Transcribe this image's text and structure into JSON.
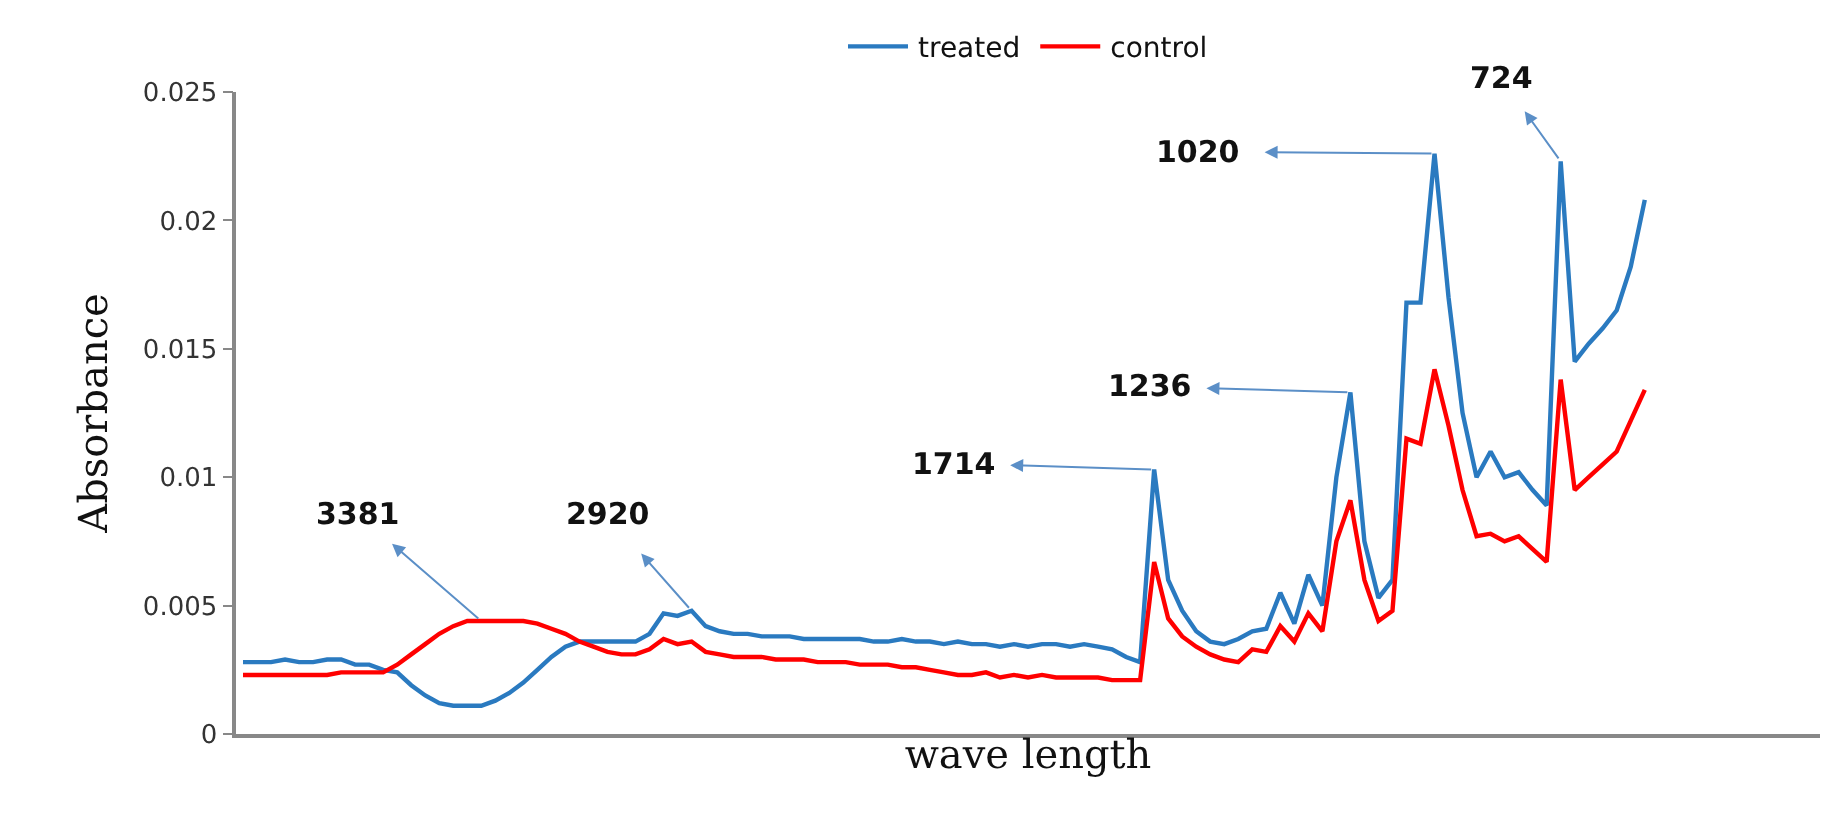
{
  "chart_data": {
    "type": "line",
    "xlabel": "wave length",
    "ylabel": "Absorbance",
    "categories": [
      null,
      null,
      null,
      null,
      null,
      null,
      null,
      null,
      null,
      null,
      null,
      null,
      null,
      null,
      null,
      null,
      null,
      null,
      null,
      null,
      null,
      null,
      null,
      null,
      null,
      null,
      null,
      null,
      null,
      null,
      null,
      null,
      null,
      null,
      null,
      null,
      null,
      null,
      null,
      null,
      null,
      null,
      null,
      null,
      null,
      null,
      null,
      null,
      null,
      null,
      null,
      null,
      null,
      null,
      null,
      null,
      null,
      null,
      null,
      null,
      null,
      null,
      null,
      null,
      null,
      null,
      null,
      null,
      null,
      null,
      null,
      null,
      null,
      null,
      null,
      null,
      null,
      null,
      null,
      null,
      null,
      null,
      null,
      null,
      null,
      null,
      null,
      null,
      null,
      null,
      null,
      null,
      null,
      null,
      null,
      null,
      null,
      null,
      null,
      null,
      null,
      null,
      null,
      null,
      null,
      null,
      null,
      null,
      null,
      null,
      null,
      null,
      null
    ],
    "series": [
      {
        "name": "treated",
        "color": "#2a7ac0",
        "values": [
          0.0028,
          0.0028,
          0.0028,
          0.0029,
          0.0028,
          0.0028,
          0.0029,
          0.0029,
          0.0027,
          0.0027,
          0.0025,
          0.0024,
          0.0019,
          0.0015,
          0.0012,
          0.0011,
          0.0011,
          0.0011,
          0.0013,
          0.0016,
          0.002,
          0.0025,
          0.003,
          0.0034,
          0.0036,
          0.0036,
          0.0036,
          0.0036,
          0.0036,
          0.0039,
          0.0047,
          0.0046,
          0.0048,
          0.0042,
          0.004,
          0.0039,
          0.0039,
          0.0038,
          0.0038,
          0.0038,
          0.0037,
          0.0037,
          0.0037,
          0.0037,
          0.0037,
          0.0036,
          0.0036,
          0.0037,
          0.0036,
          0.0036,
          0.0035,
          0.0036,
          0.0035,
          0.0035,
          0.0034,
          0.0035,
          0.0034,
          0.0035,
          0.0035,
          0.0034,
          0.0035,
          0.0034,
          0.0033,
          0.003,
          0.0028,
          0.0103,
          0.006,
          0.0048,
          0.004,
          0.0036,
          0.0035,
          0.0037,
          0.004,
          0.0041,
          0.0055,
          0.0043,
          0.0062,
          0.005,
          0.01,
          0.0133,
          0.0075,
          0.0053,
          0.006,
          0.0168,
          0.0168,
          0.0226,
          0.017,
          0.0125,
          0.01,
          0.011,
          0.01,
          0.0102,
          0.0095,
          0.0089,
          0.0223,
          0.0145,
          0.0152,
          0.0158,
          0.0165,
          0.0182,
          0.0208,
          null,
          null,
          null,
          null,
          null,
          null,
          null,
          null,
          null,
          null,
          null,
          null
        ]
      },
      {
        "name": "control",
        "color": "#ff0000",
        "values": [
          0.0023,
          0.0023,
          0.0023,
          0.0023,
          0.0023,
          0.0023,
          0.0023,
          0.0024,
          0.0024,
          0.0024,
          0.0024,
          0.0027,
          0.0031,
          0.0035,
          0.0039,
          0.0042,
          0.0044,
          0.0044,
          0.0044,
          0.0044,
          0.0044,
          0.0043,
          0.0041,
          0.0039,
          0.0036,
          0.0034,
          0.0032,
          0.0031,
          0.0031,
          0.0033,
          0.0037,
          0.0035,
          0.0036,
          0.0032,
          0.0031,
          0.003,
          0.003,
          0.003,
          0.0029,
          0.0029,
          0.0029,
          0.0028,
          0.0028,
          0.0028,
          0.0027,
          0.0027,
          0.0027,
          0.0026,
          0.0026,
          0.0025,
          0.0024,
          0.0023,
          0.0023,
          0.0024,
          0.0022,
          0.0023,
          0.0022,
          0.0023,
          0.0022,
          0.0022,
          0.0022,
          0.0022,
          0.0021,
          0.0021,
          0.0021,
          0.0067,
          0.0045,
          0.0038,
          0.0034,
          0.0031,
          0.0029,
          0.0028,
          0.0033,
          0.0032,
          0.0042,
          0.0036,
          0.0047,
          0.004,
          0.0075,
          0.0091,
          0.006,
          0.0044,
          0.0048,
          0.0115,
          0.0113,
          0.0142,
          0.012,
          0.0095,
          0.0077,
          0.0078,
          0.0075,
          0.0077,
          0.0072,
          0.0067,
          0.0138,
          0.0095,
          0.01,
          0.0105,
          0.011,
          0.0122,
          0.0134,
          null,
          null,
          null,
          null,
          null,
          null,
          null,
          null,
          null,
          null,
          null,
          null
        ]
      }
    ],
    "ylim": [
      0,
      0.025
    ],
    "yticks": [
      0,
      0.005,
      0.01,
      0.015,
      0.02,
      0.025
    ],
    "annotations": [
      "3381",
      "2920",
      "1714",
      "1236",
      "1020",
      "724"
    ],
    "legend": "top",
    "marker": "none",
    "line_style": "solid",
    "tick_labels": "y"
  }
}
